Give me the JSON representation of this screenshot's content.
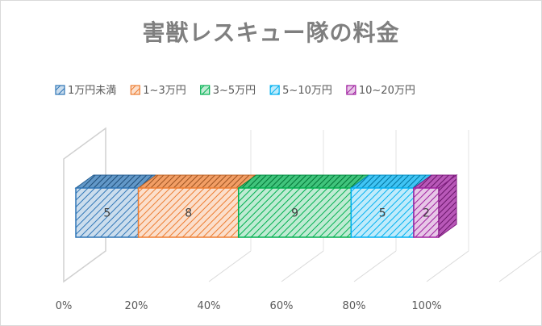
{
  "chart_data": {
    "type": "bar",
    "orientation": "horizontal",
    "stacking": "percent",
    "title": "害獣レスキュー隊の料金",
    "categories": [
      ""
    ],
    "series": [
      {
        "name": "1万円未満",
        "values": [
          5
        ],
        "color": "#2e75b6"
      },
      {
        "name": "1~3万円",
        "values": [
          8
        ],
        "color": "#ed7d31"
      },
      {
        "name": "3~5万円",
        "values": [
          9
        ],
        "color": "#00b050"
      },
      {
        "name": "5~10万円",
        "values": [
          5
        ],
        "color": "#00b0f0"
      },
      {
        "name": "10~20万円",
        "values": [
          2
        ],
        "color": "#a020a0"
      }
    ],
    "xlim": [
      0,
      100
    ],
    "x_ticks": [
      "0%",
      "20%",
      "40%",
      "60%",
      "80%",
      "100%"
    ],
    "legend_position": "top",
    "grid": true,
    "style": "3d-patterned"
  }
}
